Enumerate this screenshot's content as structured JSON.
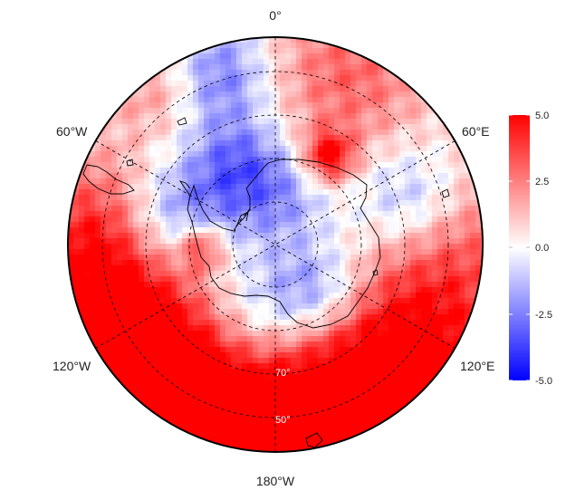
{
  "map": {
    "projection": "south-polar-stereographic",
    "longitude_labels": {
      "top": "0°",
      "upper_left": "60°W",
      "upper_right": "60°E",
      "lower_left": "120°W",
      "lower_right": "120°E",
      "bottom": "180°W"
    },
    "latitude_labels": [
      "70°",
      "50°"
    ],
    "colors": {
      "negative": "#0000ff",
      "neutral": "#ffffff",
      "positive": "#ff0000",
      "coastline": "#000000",
      "graticule": "#000000"
    }
  },
  "colorbar": {
    "min": -5.0,
    "max": 5.0,
    "ticks": [
      "5.0",
      "2.5",
      "0.0",
      "-2.5",
      "-5.0"
    ]
  }
}
